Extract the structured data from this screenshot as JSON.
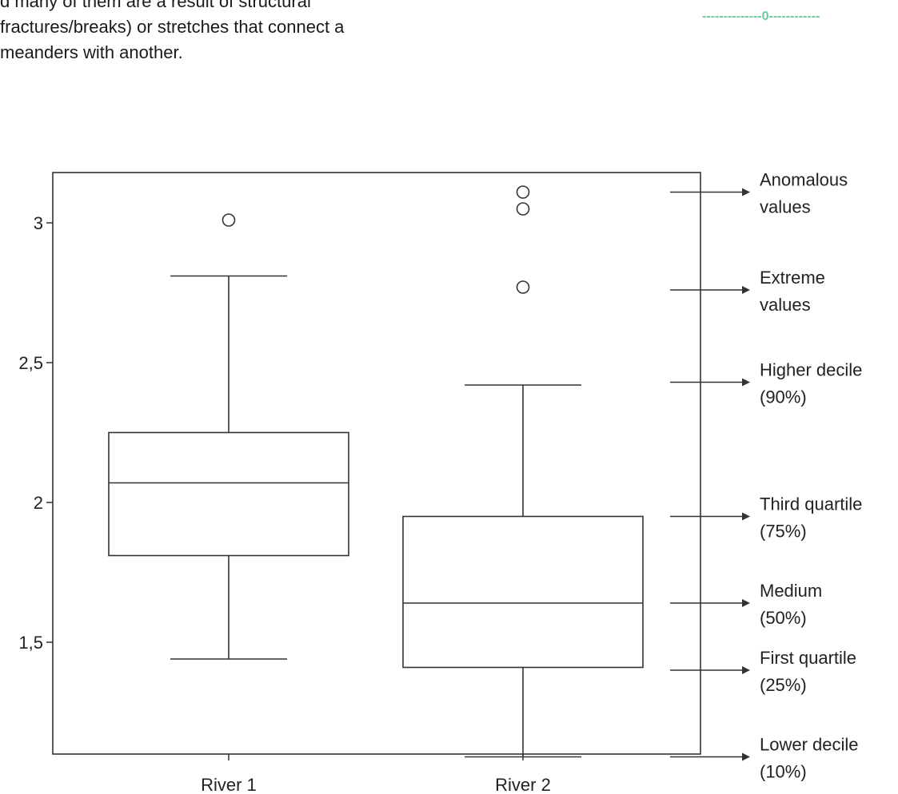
{
  "document": {
    "text_lines": [
      "d many of them are a result of structural",
      "fractures/breaks) or stretches that connect a",
      "meanders with another."
    ],
    "page_marker": "--------------0------------"
  },
  "chart_data": {
    "type": "box",
    "categories": [
      "River 1",
      "River 2"
    ],
    "ylim": [
      1.1,
      3.18
    ],
    "yticks": [
      1.5,
      2,
      2.5,
      3
    ],
    "ytick_labels": [
      "1,5",
      "2",
      "2,5",
      "3"
    ],
    "boxes": [
      {
        "category": "River 1",
        "lower_whisker": 1.44,
        "q1": 1.81,
        "median": 2.07,
        "q3": 2.25,
        "upper_whisker": 2.81,
        "outliers": [
          3.01
        ]
      },
      {
        "category": "River 2",
        "lower_whisker": 1.09,
        "q1": 1.41,
        "median": 1.64,
        "q3": 1.95,
        "upper_whisker": 2.42,
        "outliers": [
          2.77,
          3.05,
          3.11
        ]
      }
    ],
    "legend": [
      {
        "label": [
          "Anomalous",
          "values"
        ],
        "y": 3.11
      },
      {
        "label": [
          "Extreme",
          "values"
        ],
        "y": 2.76
      },
      {
        "label": [
          "Higher decile",
          "(90%)"
        ],
        "y": 2.43
      },
      {
        "label": [
          "Third quartile",
          "(75%)"
        ],
        "y": 1.95
      },
      {
        "label": [
          "Medium",
          "(50%)"
        ],
        "y": 1.64
      },
      {
        "label": [
          "First quartile",
          "(25%)"
        ],
        "y": 1.4
      },
      {
        "label": [
          "Lower decile",
          "(10%)"
        ],
        "y": 1.09
      }
    ],
    "grid": false
  }
}
